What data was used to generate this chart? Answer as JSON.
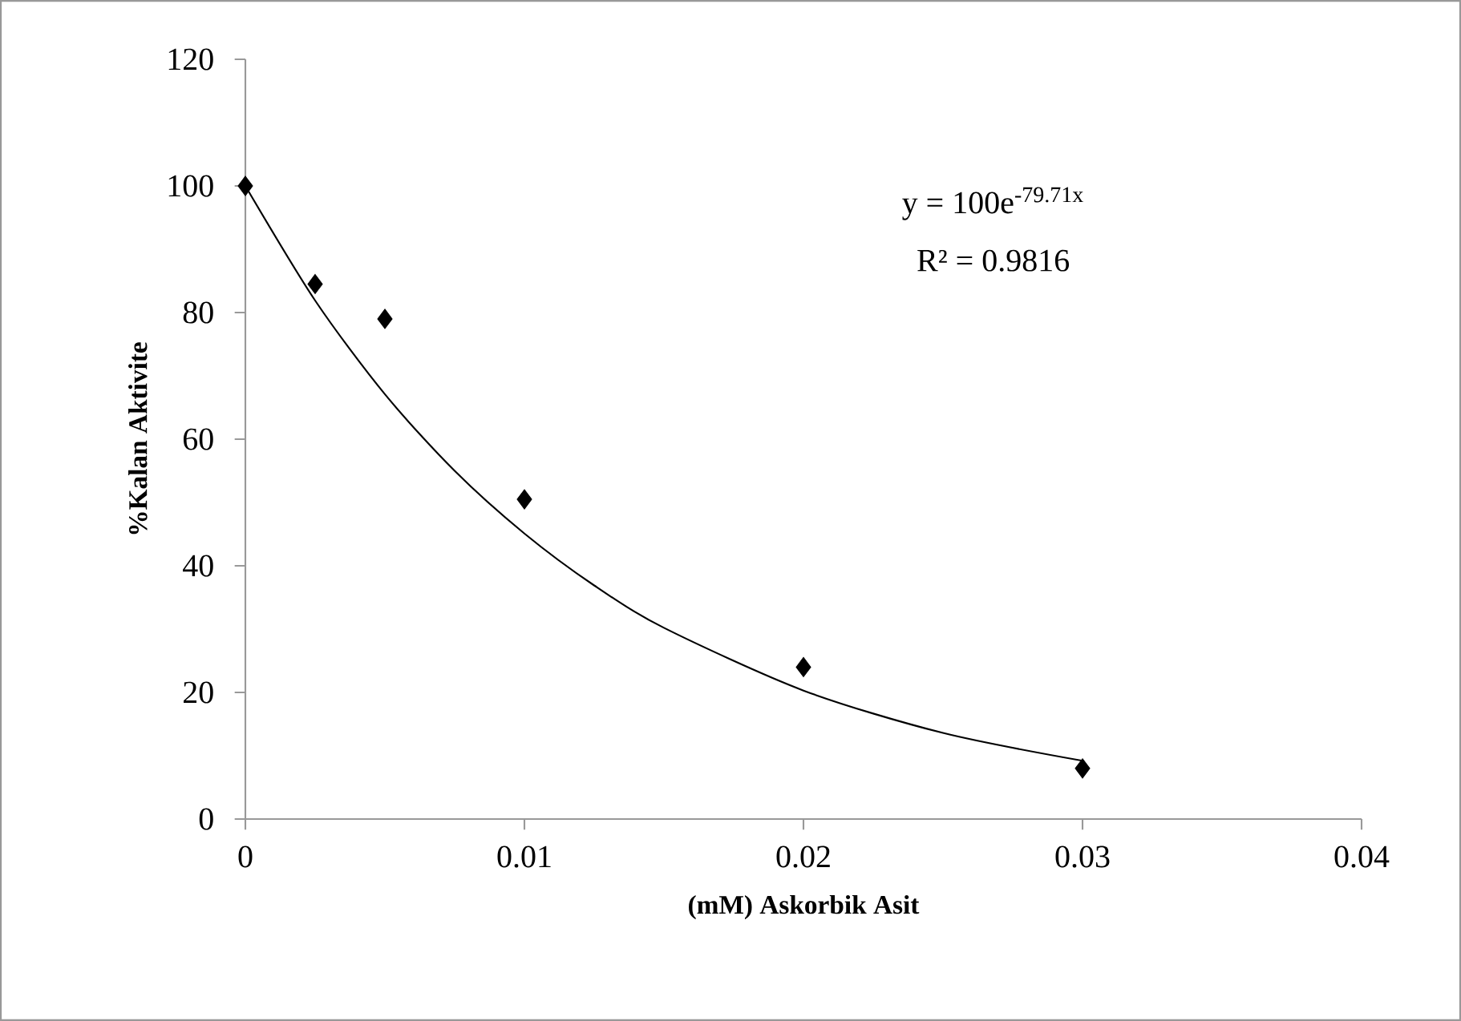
{
  "chart_data": {
    "type": "scatter",
    "xlabel": "(mM) Askorbik Asit",
    "ylabel": "%Kalan Aktivite",
    "annotations": [
      "y = 100e$^{-79.71x}$",
      "R² = 0.9816"
    ],
    "xlim": [
      0,
      0.04
    ],
    "xticks": [
      0,
      0.01,
      0.02,
      0.03,
      0.04
    ],
    "ylim": [
      0,
      120
    ],
    "yticks": [
      0,
      20,
      40,
      60,
      80,
      100,
      120
    ],
    "grid": false,
    "series": [
      {
        "color": "#000000",
        "marker": "diamond",
        "x": [
          0,
          0.0025,
          0.005,
          0.01,
          0.02,
          0.03
        ],
        "values": [
          100,
          84.5,
          79,
          50.5,
          24,
          8
        ]
      },
      {
        "type": "line",
        "color": "#000000",
        "marker": "none",
        "line_style": "solid",
        "x": [
          0,
          0.0025,
          0.005,
          0.0075,
          0.01,
          0.0125,
          0.015,
          0.02,
          0.025,
          0.03
        ],
        "values": [
          100,
          81.9,
          67.1,
          55,
          45.1,
          36.9,
          30.2,
          20.3,
          13.6,
          9.2
        ]
      }
    ]
  }
}
